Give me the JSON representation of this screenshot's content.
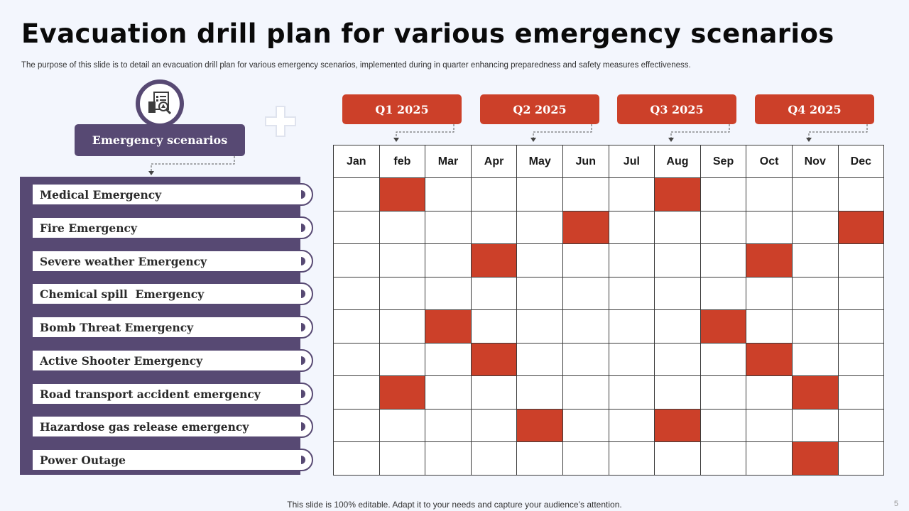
{
  "title": "Evacuation drill plan for various emergency scenarios",
  "subtitle": "The purpose of this slide is to detail an evacuation drill plan for various emergency scenarios, implemented during in quarter enhancing preparedness and safety measures effectiveness.",
  "scenarios_header": "Emergency scenarios",
  "scenarios": [
    "Medical Emergency",
    "Fire Emergency",
    "Severe weather Emergency",
    "Chemical spill  Emergency",
    "Bomb Threat Emergency",
    "Active Shooter Emergency",
    "Road transport accident emergency",
    "Hazardose gas release emergency",
    "Power Outage"
  ],
  "quarters": [
    "Q1 2025",
    "Q2 2025",
    "Q3 2025",
    "Q4 2025"
  ],
  "months": [
    "Jan",
    "feb",
    "Mar",
    "Apr",
    "May",
    "Jun",
    "Jul",
    "Aug",
    "Sep",
    "Oct",
    "Nov",
    "Dec"
  ],
  "schedule": [
    [
      "feb",
      "Aug"
    ],
    [
      "Jun",
      "Dec"
    ],
    [
      "Apr",
      "Oct"
    ],
    [],
    [
      "Mar",
      "Sep"
    ],
    [
      "Apr",
      "Oct"
    ],
    [
      "feb",
      "Nov"
    ],
    [
      "May",
      "Aug"
    ],
    [
      "Nov"
    ]
  ],
  "colors": {
    "accent": "#cc4029",
    "panel": "#574973",
    "background": "#f3f6fd"
  },
  "icons": {
    "scenario": "emergency-document-search-icon",
    "plus": "plus-icon"
  },
  "footer": "This slide is 100% editable. Adapt it to your needs and capture your audience’s attention.",
  "page_number": "5"
}
